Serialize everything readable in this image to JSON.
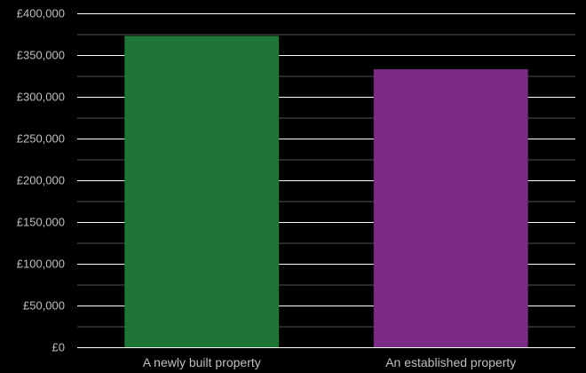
{
  "chart_data": {
    "type": "bar",
    "title": "",
    "xlabel": "",
    "ylabel": "",
    "categories": [
      "A newly built property",
      "An established property"
    ],
    "values": [
      373000,
      333000
    ],
    "colors": [
      "#1e7535",
      "#7b2a86"
    ],
    "ylim": [
      0,
      400000
    ],
    "yticks": [
      0,
      50000,
      100000,
      150000,
      200000,
      250000,
      300000,
      350000,
      400000
    ],
    "ytick_labels": [
      "£0",
      "£50,000",
      "£100,000",
      "£150,000",
      "£200,000",
      "£250,000",
      "£300,000",
      "£350,000",
      "£400,000"
    ],
    "minor_gridlines": true,
    "background": "#000000",
    "grid_color": "#ffffff",
    "minor_grid_color": "#555555",
    "text_color": "#bfbfbf"
  }
}
